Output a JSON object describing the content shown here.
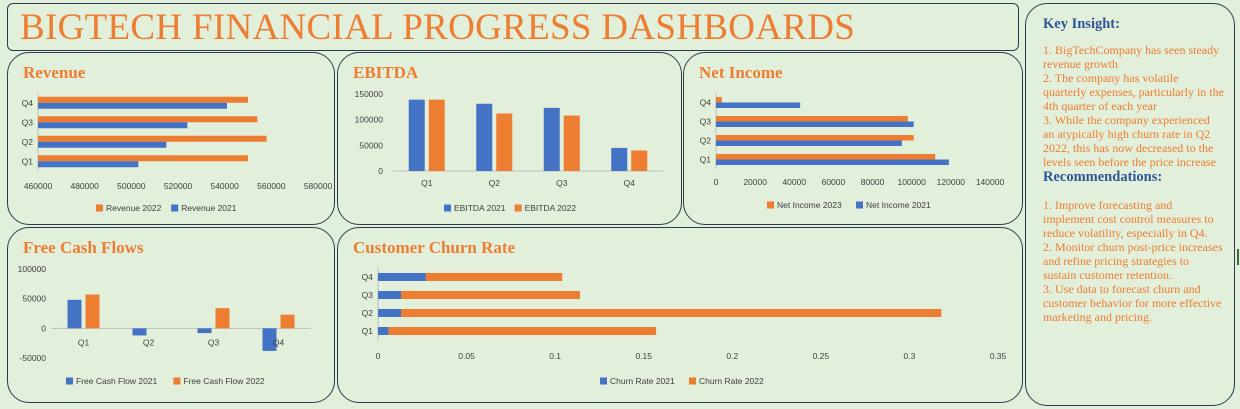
{
  "dashboard_title": "BIGTECH FINANCIAL PROGRESS DASHBOARDS",
  "insight": {
    "heading": "Key Insight:",
    "text": "1. BigTechCompany has seen steady revenue growth\n2.  The company has volatile quarterly expenses, particularly in the 4th quarter of each year\n3.  While the company experienced an atypically high churn rate in Q2 2022, this has now decreased to the levels seen before the price increase",
    "rec_heading": "Recommendations:",
    "rec_text": "1. Improve forecasting and implement cost control measures to reduce volatility, especially in Q4.\n2. Monitor churn post-price increases and refine pricing strategies to sustain customer retention.\n3. Use data to forecast churn and customer behavior for more effective marketing and pricing."
  },
  "colors": {
    "blue": "#4472c4",
    "orange": "#ed7d31",
    "axis_text": "#404040"
  },
  "chart_data": [
    {
      "id": "revenue",
      "type": "bar",
      "orientation": "horizontal",
      "title": "Revenue",
      "categories": [
        "Q1",
        "Q2",
        "Q3",
        "Q4"
      ],
      "series": [
        {
          "name": "Revenue 2022",
          "color": "#ed7d31",
          "values": [
            550000,
            558000,
            554000,
            550000
          ]
        },
        {
          "name": "Revenue 2021",
          "color": "#4472c4",
          "values": [
            503000,
            515000,
            524000,
            541000
          ]
        }
      ],
      "xlim": [
        460000,
        580000
      ],
      "xticks": [
        "460000",
        "480000",
        "500000",
        "520000",
        "540000",
        "560000",
        "580000"
      ],
      "legend": "bottom"
    },
    {
      "id": "ebitda",
      "type": "bar",
      "orientation": "vertical",
      "title": "EBITDA",
      "categories": [
        "Q1",
        "Q2",
        "Q3",
        "Q4"
      ],
      "series": [
        {
          "name": "EBITDA 2021",
          "color": "#4472c4",
          "values": [
            139000,
            131000,
            123000,
            45000
          ]
        },
        {
          "name": "EBITDA 2022",
          "color": "#ed7d31",
          "values": [
            139000,
            112000,
            108000,
            40000
          ]
        }
      ],
      "ylim": [
        0,
        150000
      ],
      "yticks": [
        "0",
        "50000",
        "100000",
        "150000"
      ],
      "legend": "bottom"
    },
    {
      "id": "netincome",
      "type": "bar",
      "orientation": "horizontal",
      "title": "Net Income",
      "categories": [
        "Q1",
        "Q2",
        "Q3",
        "Q4"
      ],
      "series": [
        {
          "name": "Net Income 2023",
          "color": "#ed7d31",
          "values": [
            112000,
            101000,
            98000,
            3000
          ]
        },
        {
          "name": "Net Income 2021",
          "color": "#4472c4",
          "values": [
            119000,
            95000,
            101000,
            43000
          ]
        }
      ],
      "xlim": [
        0,
        140000
      ],
      "xticks": [
        "0",
        "20000",
        "40000",
        "60000",
        "80000",
        "100000",
        "120000",
        "140000"
      ],
      "legend": "bottom"
    },
    {
      "id": "fcf",
      "type": "bar",
      "orientation": "vertical",
      "title": "Free Cash Flows",
      "categories": [
        "Q1",
        "Q2",
        "Q3",
        "Q4"
      ],
      "series": [
        {
          "name": "Free Cash Flow 2021",
          "color": "#4472c4",
          "values": [
            48000,
            -12000,
            -8000,
            -38000
          ]
        },
        {
          "name": "Free Cash Flow 2022",
          "color": "#ed7d31",
          "values": [
            57000,
            0,
            34000,
            23000
          ]
        }
      ],
      "ylim": [
        -50000,
        100000
      ],
      "yticks": [
        "-50000",
        "0",
        "50000",
        "100000"
      ],
      "legend": "bottom"
    },
    {
      "id": "churn",
      "type": "bar",
      "orientation": "horizontal",
      "stacked": true,
      "title": "Customer Churn Rate",
      "categories": [
        "Q1",
        "Q2",
        "Q3",
        "Q4"
      ],
      "series": [
        {
          "name": "Churn Rate 2021",
          "color": "#4472c4",
          "values": [
            0.006,
            0.013,
            0.013,
            0.027
          ]
        },
        {
          "name": "Churn Rate 2022",
          "color": "#ed7d31",
          "values": [
            0.151,
            0.305,
            0.101,
            0.077
          ]
        }
      ],
      "xlim": [
        0,
        0.35
      ],
      "xticks": [
        "0",
        "0.05",
        "0.1",
        "0.15",
        "0.2",
        "0.25",
        "0.3",
        "0.35"
      ],
      "legend": "bottom"
    }
  ]
}
